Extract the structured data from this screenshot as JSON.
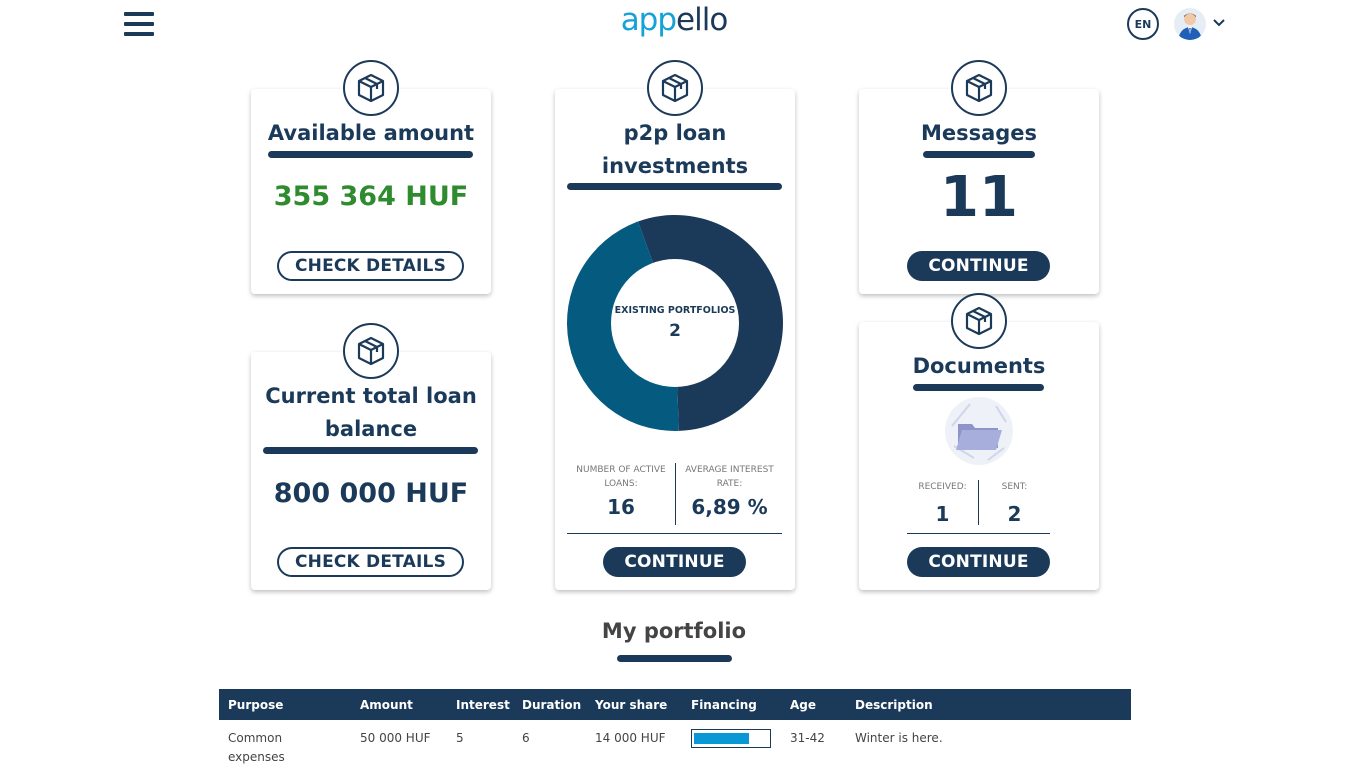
{
  "header": {
    "logo_part1": "app",
    "logo_part2": "ello",
    "lang": "EN"
  },
  "cards": {
    "available": {
      "title": "Available amount",
      "amount": "355 364 HUF",
      "button": "CHECK DETAILS",
      "amount_color": "#2e8b2e"
    },
    "loan_balance": {
      "title_line1": "Current total loan",
      "title_line2": "balance",
      "amount": "800 000 HUF",
      "button": "CHECK DETAILS"
    },
    "p2p": {
      "title_line1": "p2p loan",
      "title_line2": "investments",
      "donut_label": "EXISTING PORTFOLIOS",
      "donut_value": "2",
      "active_loans_label_line1": "NUMBER OF ACTIVE",
      "active_loans_label_line2": "LOANS:",
      "active_loans_value": "16",
      "avg_rate_label_line1": "AVERAGE INTEREST",
      "avg_rate_label_line2": "RATE:",
      "avg_rate_value": "6,89 %",
      "button": "CONTINUE",
      "donut_colors": [
        "#1b3a5a",
        "#055a80"
      ],
      "donut_fractions": [
        0.55,
        0.45
      ]
    },
    "messages": {
      "title": "Messages",
      "count": "11",
      "button": "CONTINUE"
    },
    "documents": {
      "title": "Documents",
      "received_label": "RECEIVED:",
      "received_value": "1",
      "sent_label": "SENT:",
      "sent_value": "2",
      "button": "CONTINUE"
    }
  },
  "portfolio": {
    "title": "My portfolio",
    "columns": [
      "Purpose",
      "Amount",
      "Interest",
      "Duration",
      "Your share",
      "Financing",
      "Age",
      "Description"
    ],
    "rows": [
      {
        "purpose_line1": "Common",
        "purpose_line2": "expenses",
        "amount": "50 000 HUF",
        "interest": "5",
        "duration": "6",
        "share": "14 000 HUF",
        "financing_fraction": 0.72,
        "age": "31-42",
        "description": "Winter is here."
      }
    ]
  },
  "colors": {
    "primary": "#1b3a5a",
    "accent": "#14a2d8",
    "green": "#2e8b2e",
    "progress": "#0a97d6"
  }
}
